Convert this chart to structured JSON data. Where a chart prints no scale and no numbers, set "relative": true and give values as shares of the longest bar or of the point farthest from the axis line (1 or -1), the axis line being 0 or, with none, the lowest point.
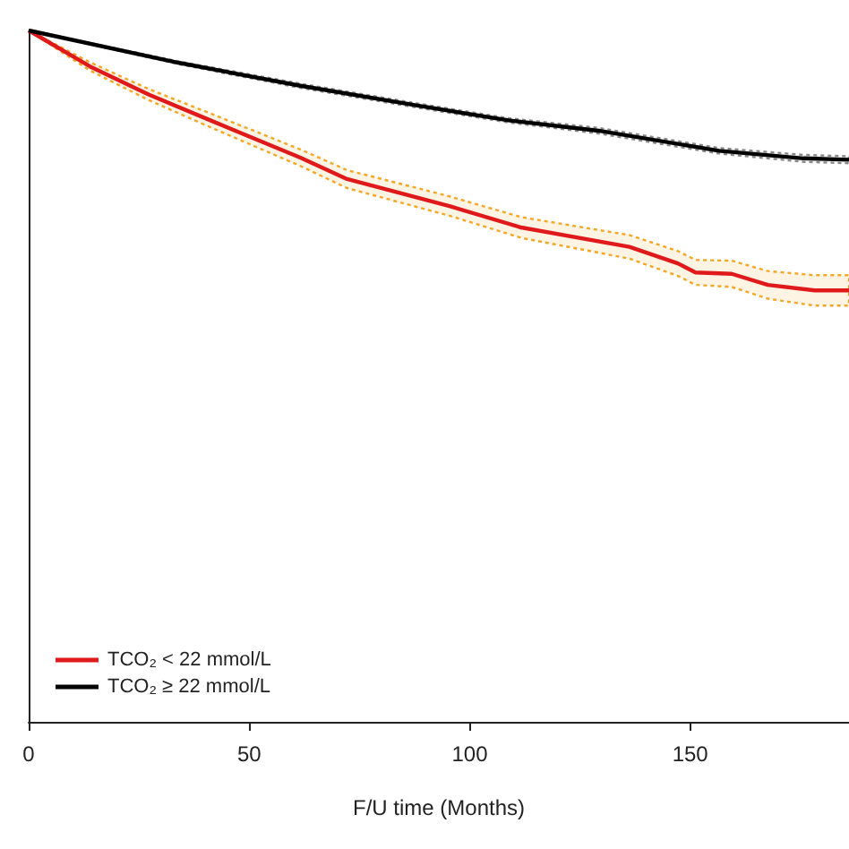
{
  "chart_data": {
    "type": "line",
    "relative": true,
    "xlabel": "F/U time (Months)",
    "xlim": [
      0,
      186
    ],
    "xticks": [
      0,
      50,
      100,
      150
    ],
    "legend": "bottom left",
    "grid": false,
    "marker": "none",
    "line_style": "solid",
    "series": [
      {
        "name": "TCO₂ < 22 mmol/L",
        "color": "#e0191b",
        "x": [
          0,
          13.9,
          27.3,
          41.2,
          61.6,
          72.2,
          95.4,
          111.7,
          136.2,
          147.2,
          151.2,
          159.4,
          167.6,
          178.2,
          186
        ],
        "values": [
          1,
          0.948,
          0.907,
          0.87,
          0.816,
          0.785,
          0.746,
          0.715,
          0.687,
          0.663,
          0.65,
          0.648,
          0.632,
          0.624,
          0.624
        ],
        "lower": [
          1,
          0.942,
          0.899,
          0.86,
          0.804,
          0.772,
          0.732,
          0.7,
          0.67,
          0.645,
          0.632,
          0.629,
          0.612,
          0.602,
          0.602
        ],
        "upper": [
          1,
          0.954,
          0.915,
          0.88,
          0.828,
          0.798,
          0.76,
          0.73,
          0.704,
          0.681,
          0.668,
          0.667,
          0.652,
          0.646,
          0.646
        ]
      },
      {
        "name": "TCO₂ ≥ 22 mmol/L",
        "color": "#000000",
        "x": [
          0,
          34.2,
          61.6,
          88.5,
          108.8,
          129.2,
          156.5,
          175.7,
          186
        ],
        "values": [
          1,
          0.953,
          0.92,
          0.891,
          0.87,
          0.855,
          0.826,
          0.815,
          0.813
        ],
        "lower": [
          1,
          0.951,
          0.917,
          0.888,
          0.867,
          0.851,
          0.822,
          0.81,
          0.808
        ],
        "upper": [
          1,
          0.955,
          0.923,
          0.894,
          0.873,
          0.859,
          0.83,
          0.82,
          0.818
        ]
      }
    ]
  }
}
